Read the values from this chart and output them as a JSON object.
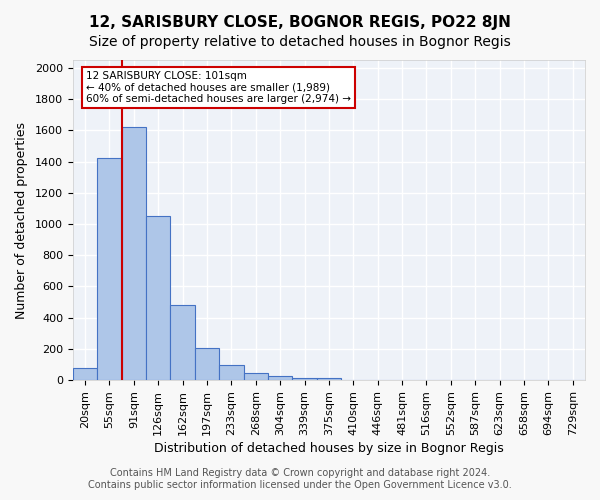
{
  "title": "12, SARISBURY CLOSE, BOGNOR REGIS, PO22 8JN",
  "subtitle": "Size of property relative to detached houses in Bognor Regis",
  "xlabel": "Distribution of detached houses by size in Bognor Regis",
  "ylabel": "Number of detached properties",
  "footer_line1": "Contains HM Land Registry data © Crown copyright and database right 2024.",
  "footer_line2": "Contains public sector information licensed under the Open Government Licence v3.0.",
  "bin_labels": [
    "20sqm",
    "55sqm",
    "91sqm",
    "126sqm",
    "162sqm",
    "197sqm",
    "233sqm",
    "268sqm",
    "304sqm",
    "339sqm",
    "375sqm",
    "410sqm",
    "446sqm",
    "481sqm",
    "516sqm",
    "552sqm",
    "587sqm",
    "623sqm",
    "658sqm",
    "694sqm",
    "729sqm"
  ],
  "bin_values": [
    80,
    1420,
    1620,
    1050,
    480,
    205,
    100,
    45,
    25,
    15,
    12,
    0,
    0,
    0,
    0,
    0,
    0,
    0,
    0,
    0,
    0
  ],
  "bar_color": "#aec6e8",
  "bar_edge_color": "#4472c4",
  "vline_x": 1.5,
  "vline_color": "#cc0000",
  "annotation_text": "12 SARISBURY CLOSE: 101sqm\n← 40% of detached houses are smaller (1,989)\n60% of semi-detached houses are larger (2,974) →",
  "annotation_box_color": "#ffffff",
  "annotation_box_edge": "#cc0000",
  "ylim": [
    0,
    2050
  ],
  "background_color": "#eef2f8",
  "grid_color": "#ffffff",
  "title_fontsize": 11,
  "subtitle_fontsize": 10,
  "axis_label_fontsize": 9,
  "tick_fontsize": 8,
  "annotation_fontsize": 7.5,
  "footer_fontsize": 7
}
